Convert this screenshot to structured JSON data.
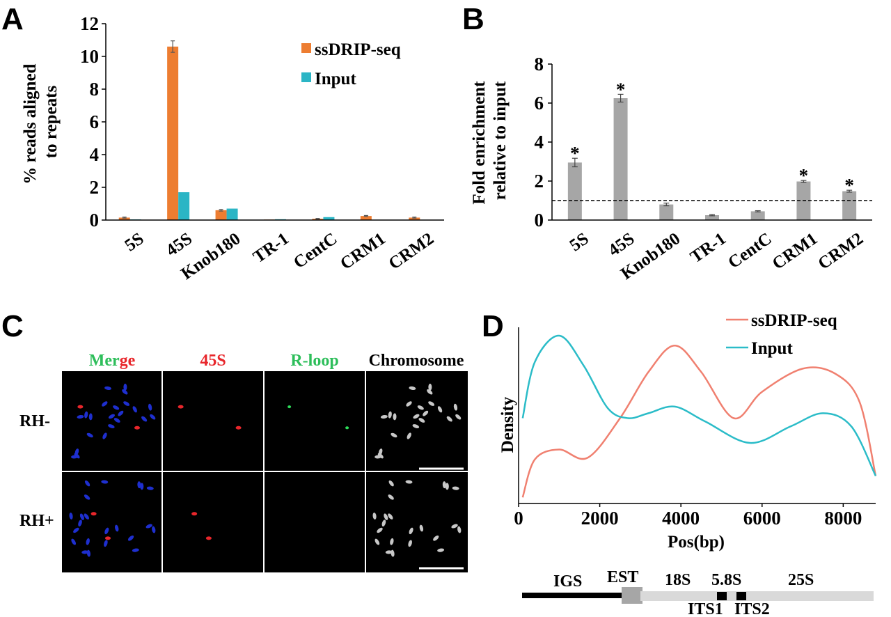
{
  "panels": {
    "A": {
      "label": "A"
    },
    "B": {
      "label": "B"
    },
    "C": {
      "label": "C"
    },
    "D": {
      "label": "D"
    }
  },
  "colors": {
    "ssdrip": "#ED7D31",
    "input": "#2BB5C5",
    "gray_bar": "#A6A6A6",
    "ssdrip_line": "#F08070",
    "input_line": "#2BBCC8"
  },
  "chart_data": [
    {
      "id": "A",
      "type": "bar",
      "ylabel": "% reads aligned to repeats",
      "ylabel_lines": [
        "% reads aligned",
        "to repeats"
      ],
      "ylim": [
        0,
        12
      ],
      "yticks": [
        "0",
        "2",
        "4",
        "6",
        "8",
        "10",
        "12"
      ],
      "categories": [
        "5S",
        "45S",
        "Knob180",
        "TR-1",
        "CentC",
        "CRM1",
        "CRM2"
      ],
      "series": [
        {
          "name": "ssDRIP-seq",
          "values": [
            0.15,
            10.6,
            0.6,
            0.03,
            0.08,
            0.25,
            0.15
          ],
          "errors": [
            0.03,
            0.35,
            0.05,
            0.0,
            0.02,
            0.03,
            0.03
          ]
        },
        {
          "name": "Input",
          "values": [
            0.04,
            1.7,
            0.7,
            0.05,
            0.18,
            0.02,
            0.02
          ],
          "errors": [
            0,
            0,
            0,
            0,
            0,
            0,
            0
          ]
        }
      ],
      "legend": [
        "ssDRIP-seq",
        "Input"
      ]
    },
    {
      "id": "B",
      "type": "bar",
      "ylabel": "Fold enrichment relative to input",
      "ylabel_lines": [
        "Fold enrichment",
        "relative to input"
      ],
      "ylim": [
        0,
        8
      ],
      "yticks": [
        "0",
        "2",
        "4",
        "6",
        "8"
      ],
      "categories": [
        "5S",
        "45S",
        "Knob180",
        "TR-1",
        "CentC",
        "CRM1",
        "CRM2"
      ],
      "values": [
        2.95,
        6.25,
        0.8,
        0.25,
        0.45,
        1.98,
        1.48
      ],
      "errors": [
        0.22,
        0.2,
        0.07,
        0.03,
        0.03,
        0.05,
        0.05
      ],
      "significant": [
        "*",
        "*",
        "",
        "",
        "",
        "*",
        "*"
      ],
      "reference_line": 1.0
    },
    {
      "id": "D",
      "type": "line",
      "xlabel": "Pos(bp)",
      "ylabel": "Density",
      "xlim": [
        0,
        8800
      ],
      "xticks": [
        "0",
        "2000",
        "4000",
        "6000",
        "8000"
      ],
      "series": [
        {
          "name": "ssDRIP-seq",
          "x": [
            100,
            400,
            1000,
            1700,
            2500,
            3200,
            3850,
            4500,
            5300,
            6000,
            7000,
            7800,
            8400,
            8800
          ],
          "y": [
            0.02,
            0.25,
            0.31,
            0.26,
            0.5,
            0.78,
            0.94,
            0.78,
            0.5,
            0.66,
            0.8,
            0.77,
            0.6,
            0.15
          ]
        },
        {
          "name": "Input",
          "x": [
            100,
            400,
            1000,
            1600,
            2200,
            2700,
            3200,
            3850,
            4600,
            5700,
            6700,
            7500,
            8200,
            8800
          ],
          "y": [
            0.5,
            0.84,
            1.0,
            0.82,
            0.56,
            0.5,
            0.53,
            0.57,
            0.48,
            0.35,
            0.45,
            0.53,
            0.45,
            0.15
          ]
        }
      ],
      "legend": [
        "ssDRIP-seq",
        "Input"
      ]
    }
  ],
  "microscopy": {
    "columns": [
      {
        "parts": [
          {
            "text": "Mer",
            "color": "#2DBE5A"
          },
          {
            "text": "ge",
            "color": "#E8262B"
          }
        ]
      },
      {
        "parts": [
          {
            "text": "45S",
            "color": "#E8262B"
          }
        ]
      },
      {
        "parts": [
          {
            "text": "R-loop",
            "color": "#2DBE5A"
          }
        ]
      },
      {
        "parts": [
          {
            "text": "Chromosome",
            "color": "#000000"
          }
        ]
      }
    ],
    "rows": [
      "RH-",
      "RH+"
    ]
  },
  "gene_diagram": {
    "segments": [
      "IGS",
      "EST",
      "18S",
      "5.8S",
      "25S"
    ],
    "spacers": [
      "ITS1",
      "ITS2"
    ]
  }
}
